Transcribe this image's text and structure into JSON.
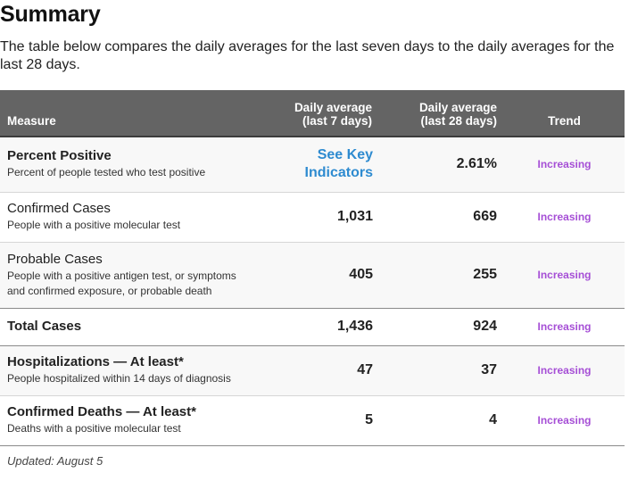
{
  "title": "Summary",
  "intro": "The table below compares the daily averages for the last seven days to the daily averages for the last 28 days.",
  "table": {
    "headers": {
      "measure": "Measure",
      "avg7_line1": "Daily average",
      "avg7_line2": "(last 7 days)",
      "avg28_line1": "Daily average",
      "avg28_line2": "(last 28 days)",
      "trend": "Trend"
    },
    "rows": [
      {
        "title": "Percent Positive",
        "subtitle": "Percent of people tested who test positive",
        "avg7_link_line1": "See Key",
        "avg7_link_line2": "Indicators",
        "avg28": "2.61%",
        "trend": "Increasing"
      },
      {
        "title": "Confirmed Cases",
        "subtitle": "People with a positive molecular test",
        "avg7": "1,031",
        "avg28": "669",
        "trend": "Increasing"
      },
      {
        "title": "Probable Cases",
        "subtitle_line1": "People with a positive antigen test, or symptoms",
        "subtitle_line2": "and confirmed exposure, or probable death",
        "avg7": "405",
        "avg28": "255",
        "trend": "Increasing"
      },
      {
        "title": "Total Cases",
        "avg7": "1,436",
        "avg28": "924",
        "trend": "Increasing"
      },
      {
        "title": "Hospitalizations — At least*",
        "subtitle": "People hospitalized within 14 days of diagnosis",
        "avg7": "47",
        "avg28": "37",
        "trend": "Increasing"
      },
      {
        "title": "Confirmed Deaths — At least*",
        "subtitle": "Deaths with a positive molecular test",
        "avg7": "5",
        "avg28": "4",
        "trend": "Increasing"
      }
    ]
  },
  "updated": "Updated: August 5",
  "colors": {
    "header_bg": "#646464",
    "link": "#2e8bd0",
    "trend": "#a64fd6"
  }
}
